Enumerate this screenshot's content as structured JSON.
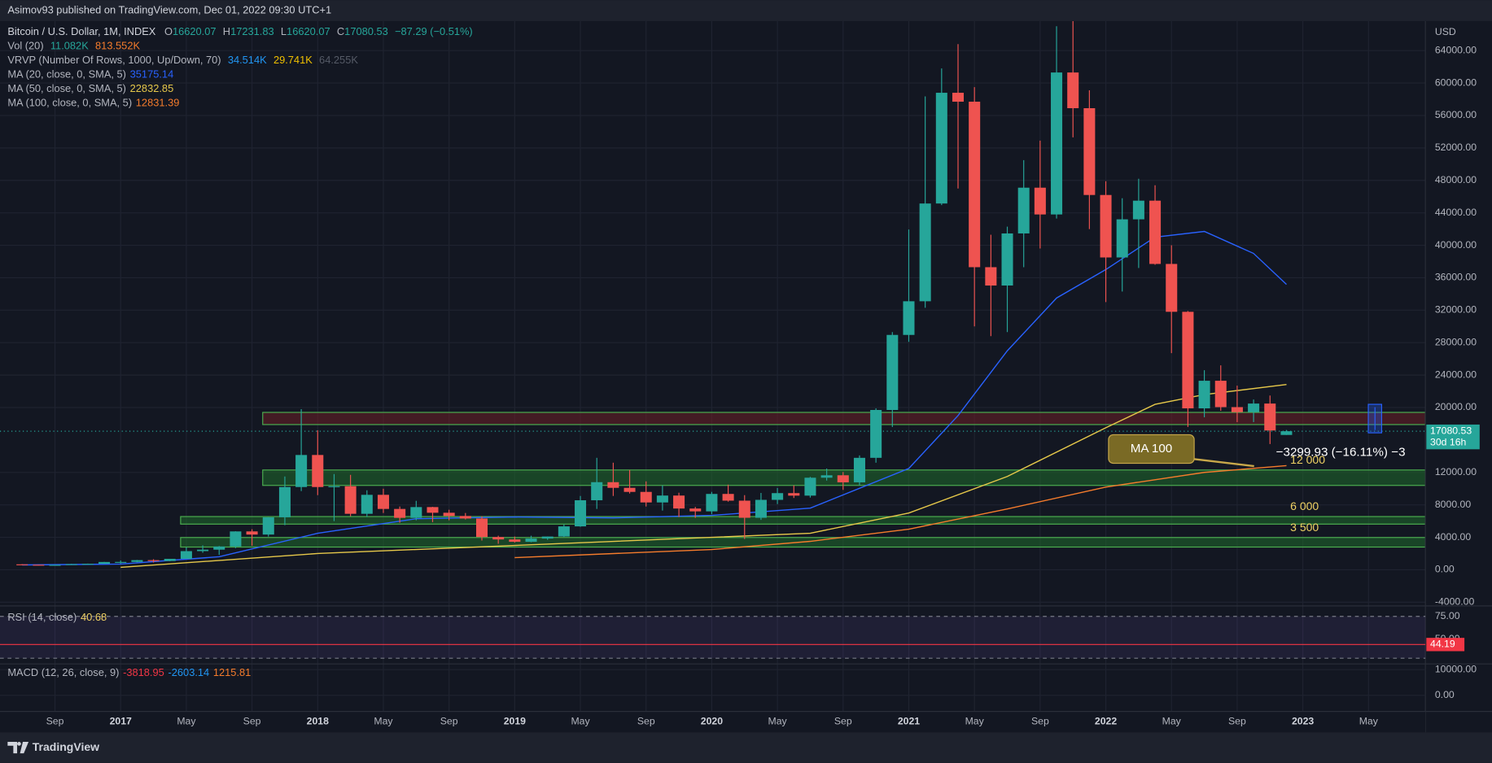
{
  "header": {
    "publisher": "Asimov93 published on TradingView.com, Dec 01, 2022 09:30 UTC+1"
  },
  "legend": {
    "o": "O",
    "h": "H",
    "l": "L",
    "c": "C",
    "change": "−87.29 (−0.51%)",
    "vol": "Vol (20)",
    "vol_values": [
      "11.082K",
      "813.552K"
    ],
    "vrvp": "VRVP (Number Of Rows, 1000, Up/Down, 70)",
    "vrvp_values": [
      "34.514K",
      "29.741K",
      "64.255K"
    ]
  },
  "price_axis": {
    "unit": "USD",
    "countdown": "30d 16h"
  },
  "annotations": {
    "ma_callout": "MA 100",
    "measure": "−3299.93 (−16.11%) −3"
  },
  "footer": {
    "brand": "TradingView"
  },
  "chart_data": {
    "type": "candlestick",
    "title": "Bitcoin / U.S. Dollar, 1M, INDEX",
    "x": [
      "2016-07",
      "2016-08",
      "2016-09",
      "2016-10",
      "2016-11",
      "2016-12",
      "2017-01",
      "2017-02",
      "2017-03",
      "2017-04",
      "2017-05",
      "2017-06",
      "2017-07",
      "2017-08",
      "2017-09",
      "2017-10",
      "2017-11",
      "2017-12",
      "2018-01",
      "2018-02",
      "2018-03",
      "2018-04",
      "2018-05",
      "2018-06",
      "2018-07",
      "2018-08",
      "2018-09",
      "2018-10",
      "2018-11",
      "2018-12",
      "2019-01",
      "2019-02",
      "2019-03",
      "2019-04",
      "2019-05",
      "2019-06",
      "2019-07",
      "2019-08",
      "2019-09",
      "2019-10",
      "2019-11",
      "2019-12",
      "2020-01",
      "2020-02",
      "2020-03",
      "2020-04",
      "2020-05",
      "2020-06",
      "2020-07",
      "2020-08",
      "2020-09",
      "2020-10",
      "2020-11",
      "2020-12",
      "2021-01",
      "2021-02",
      "2021-03",
      "2021-04",
      "2021-05",
      "2021-06",
      "2021-07",
      "2021-08",
      "2021-09",
      "2021-10",
      "2021-11",
      "2021-12",
      "2022-01",
      "2022-02",
      "2022-03",
      "2022-04",
      "2022-05",
      "2022-06",
      "2022-07",
      "2022-08",
      "2022-09",
      "2022-10",
      "2022-11",
      "2022-12"
    ],
    "open": [
      673,
      624,
      575,
      609,
      700,
      742,
      963,
      970,
      1190,
      1080,
      1350,
      2300,
      2480,
      2870,
      4730,
      4340,
      6470,
      10200,
      14150,
      10200,
      10300,
      6900,
      9240,
      7500,
      6400,
      7730,
      7030,
      6630,
      6320,
      4040,
      3740,
      3450,
      3850,
      4100,
      5350,
      8570,
      10800,
      10100,
      9600,
      8300,
      9150,
      7550,
      7200,
      9350,
      8520,
      6410,
      8620,
      9450,
      9140,
      11350,
      11650,
      10780,
      13800,
      19700,
      28950,
      33100,
      45150,
      58800,
      57700,
      37300,
      35040,
      41460,
      47100,
      43800,
      61300,
      56900,
      46200,
      38500,
      43200,
      45500,
      37700,
      31800,
      19900,
      23300,
      20050,
      19430,
      20490,
      16620.07
    ],
    "high": [
      704,
      626,
      612,
      735,
      755,
      980,
      1150,
      1210,
      1300,
      1350,
      2760,
      3000,
      2930,
      4750,
      5000,
      6470,
      11500,
      19800,
      17200,
      11800,
      11700,
      9800,
      9990,
      7800,
      8500,
      7760,
      7400,
      7000,
      6600,
      4200,
      4100,
      4200,
      4100,
      5600,
      9100,
      13800,
      13200,
      12300,
      10900,
      10400,
      9500,
      7750,
      9600,
      10500,
      9200,
      9470,
      10080,
      10400,
      11450,
      12480,
      12050,
      14100,
      19900,
      29300,
      41950,
      58350,
      61800,
      64800,
      59500,
      41300,
      42300,
      50500,
      52900,
      67000,
      69000,
      59100,
      47900,
      45800,
      48200,
      47400,
      40000,
      31900,
      24600,
      25200,
      22700,
      20990,
      21480,
      17231.83
    ],
    "low": [
      605,
      534,
      569,
      606,
      685,
      740,
      760,
      920,
      900,
      1050,
      1350,
      2100,
      1840,
      2670,
      2970,
      4100,
      5500,
      9700,
      9200,
      6000,
      6600,
      6500,
      7000,
      5800,
      6100,
      5880,
      6100,
      6200,
      3600,
      3200,
      3350,
      3400,
      3700,
      4050,
      5300,
      7500,
      9100,
      9400,
      7800,
      7300,
      6500,
      6400,
      6850,
      8400,
      3800,
      6150,
      8100,
      8850,
      8900,
      11000,
      9850,
      10400,
      13200,
      17600,
      28100,
      32300,
      44950,
      47000,
      30000,
      28800,
      29300,
      37300,
      39600,
      43300,
      53300,
      42000,
      33000,
      34300,
      37200,
      37600,
      26700,
      17600,
      18800,
      19600,
      18200,
      18200,
      15500,
      16620.07
    ],
    "close": [
      624,
      575,
      609,
      700,
      742,
      963,
      970,
      1190,
      1080,
      1350,
      2300,
      2480,
      2870,
      4730,
      4340,
      6470,
      10200,
      14150,
      10200,
      10300,
      6900,
      9240,
      7500,
      6400,
      7730,
      7030,
      6630,
      6320,
      4040,
      3740,
      3450,
      3850,
      4100,
      5350,
      8570,
      10800,
      10100,
      9600,
      8300,
      9150,
      7550,
      7200,
      9350,
      8520,
      6410,
      8620,
      9450,
      9140,
      11350,
      11650,
      10780,
      13800,
      19700,
      28950,
      33100,
      45150,
      58800,
      57700,
      37300,
      35040,
      41460,
      47100,
      43800,
      61300,
      56900,
      46200,
      38500,
      43200,
      45500,
      37700,
      31800,
      19900,
      23300,
      20050,
      19430,
      20490,
      17170,
      17080.53
    ],
    "up_color": "#26a69a",
    "down_color": "#ef5350",
    "xlim": [
      "2016-06",
      "2023-08"
    ],
    "xticks": [
      {
        "value": "2016-09",
        "label": "Sep"
      },
      {
        "value": "2017-01",
        "label": "2017"
      },
      {
        "value": "2017-05",
        "label": "May"
      },
      {
        "value": "2017-09",
        "label": "Sep"
      },
      {
        "value": "2018-01",
        "label": "2018"
      },
      {
        "value": "2018-05",
        "label": "May"
      },
      {
        "value": "2018-09",
        "label": "Sep"
      },
      {
        "value": "2019-01",
        "label": "2019"
      },
      {
        "value": "2019-05",
        "label": "May"
      },
      {
        "value": "2019-09",
        "label": "Sep"
      },
      {
        "value": "2020-01",
        "label": "2020"
      },
      {
        "value": "2020-05",
        "label": "May"
      },
      {
        "value": "2020-09",
        "label": "Sep"
      },
      {
        "value": "2021-01",
        "label": "2021"
      },
      {
        "value": "2021-05",
        "label": "May"
      },
      {
        "value": "2021-09",
        "label": "Sep"
      },
      {
        "value": "2022-01",
        "label": "2022"
      },
      {
        "value": "2022-05",
        "label": "May"
      },
      {
        "value": "2022-09",
        "label": "Sep"
      },
      {
        "value": "2023-01",
        "label": "2023"
      },
      {
        "value": "2023-05",
        "label": "May"
      }
    ],
    "ylim": [
      -4337,
      67282
    ],
    "yticks": [
      {
        "value": -4000,
        "label": "-4000.00"
      },
      {
        "value": 0,
        "label": "0.00"
      },
      {
        "value": 4000,
        "label": "4000.00"
      },
      {
        "value": 8000,
        "label": "8000.00"
      },
      {
        "value": 12000,
        "label": "12000.00"
      },
      {
        "value": 20000,
        "label": "20000.00"
      },
      {
        "value": 24000,
        "label": "24000.00"
      },
      {
        "value": 28000,
        "label": "28000.00"
      },
      {
        "value": 32000,
        "label": "32000.00"
      },
      {
        "value": 36000,
        "label": "36000.00"
      },
      {
        "value": 40000,
        "label": "40000.00"
      },
      {
        "value": 44000,
        "label": "44000.00"
      },
      {
        "value": 48000,
        "label": "48000.00"
      },
      {
        "value": 52000,
        "label": "52000.00"
      },
      {
        "value": 56000,
        "label": "56000.00"
      },
      {
        "value": 60000,
        "label": "60000.00"
      },
      {
        "value": 64000,
        "label": "64000.00"
      }
    ],
    "grid": true,
    "lines": [
      {
        "name": "MA (20, close, 0, SMA, 5)",
        "color": "#2962ff",
        "x": [
          "2016-07",
          "2017-01",
          "2017-07",
          "2018-01",
          "2018-07",
          "2019-01",
          "2019-07",
          "2020-01",
          "2020-07",
          "2021-01",
          "2021-04",
          "2021-07",
          "2021-10",
          "2022-01",
          "2022-04",
          "2022-07",
          "2022-10",
          "2022-12"
        ],
        "values": [
          600,
          700,
          1600,
          4500,
          6300,
          6500,
          6400,
          6700,
          7600,
          12500,
          19000,
          27000,
          33500,
          37000,
          41000,
          41700,
          39000,
          35175.14
        ]
      },
      {
        "name": "MA (50, close, 0, SMA, 5)",
        "color": "#e6c84a",
        "x": [
          "2017-01",
          "2018-01",
          "2019-01",
          "2020-01",
          "2020-07",
          "2021-01",
          "2021-07",
          "2022-01",
          "2022-04",
          "2022-07",
          "2022-12"
        ],
        "values": [
          300,
          2000,
          3000,
          4000,
          4500,
          7000,
          11500,
          17500,
          20400,
          21600,
          22832.85
        ]
      },
      {
        "name": "MA (100, close, 0, SMA, 5)",
        "color": "#f57c2c",
        "x": [
          "2019-01",
          "2020-01",
          "2020-07",
          "2021-01",
          "2021-07",
          "2022-01",
          "2022-07",
          "2022-12"
        ],
        "values": [
          1500,
          2500,
          3500,
          5000,
          7500,
          10200,
          12000,
          12831.39
        ]
      }
    ],
    "zones": [
      {
        "low": 17900,
        "high": 19400,
        "start": "2017-10",
        "color": "#6b1f26"
      },
      {
        "low": 10400,
        "high": 12300,
        "start": "2017-10",
        "color": "#1f6b2c",
        "label": "12 000"
      },
      {
        "low": 5630,
        "high": 6560,
        "start": "2017-05",
        "color": "#1f6b2c",
        "label": "6 000"
      },
      {
        "low": 2800,
        "high": 3980,
        "start": "2017-05",
        "color": "#1f6b2c",
        "label": "3 500"
      }
    ]
  },
  "rsi": {
    "title": "RSI (14, close)",
    "value": 40.68,
    "badge": 44.19,
    "ylim": [
      24,
      83.3
    ],
    "yticks": [
      {
        "value": 75,
        "label": "75.00"
      },
      {
        "value": 50,
        "label": "50.00"
      }
    ]
  },
  "macd": {
    "title": "MACD (12, 26, close, 9)",
    "values": [
      -3818.95,
      -2603.14,
      1215.81
    ],
    "colors": [
      "#f23645",
      "#2196f3",
      "#f57c2c"
    ],
    "ylim": [
      -6296,
      12222
    ],
    "yticks": [
      {
        "value": 10000,
        "label": "10000.00"
      },
      {
        "value": 0,
        "label": "0.00"
      }
    ]
  }
}
